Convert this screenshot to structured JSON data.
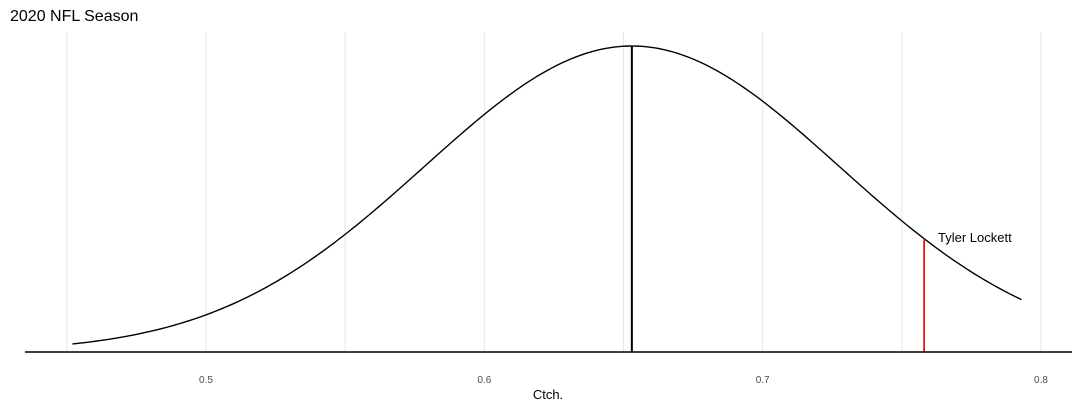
{
  "chart_data": {
    "type": "line",
    "title": "2020 NFL Season",
    "xlabel": "Ctch.",
    "ylabel": "",
    "xlim": [
      0.45,
      0.815
    ],
    "x_ticks": [
      0.5,
      0.6,
      0.7,
      0.8
    ],
    "x_tick_labels": [
      "0.5",
      "0.6",
      "0.7",
      "0.8"
    ],
    "x_minor_ticks": [
      0.45,
      0.55,
      0.65,
      0.75
    ],
    "grid": true,
    "y_axis_shown": false,
    "series": [
      {
        "kind": "normal-density",
        "mean": 0.653,
        "sd": 0.0745,
        "x_range": [
          0.452,
          0.793
        ],
        "color": "#000000"
      }
    ],
    "reference_lines": [
      {
        "x": 0.653,
        "color": "#000000"
      },
      {
        "x": 0.758,
        "color": "#e31a1c",
        "label": "Tyler Lockett"
      }
    ]
  }
}
